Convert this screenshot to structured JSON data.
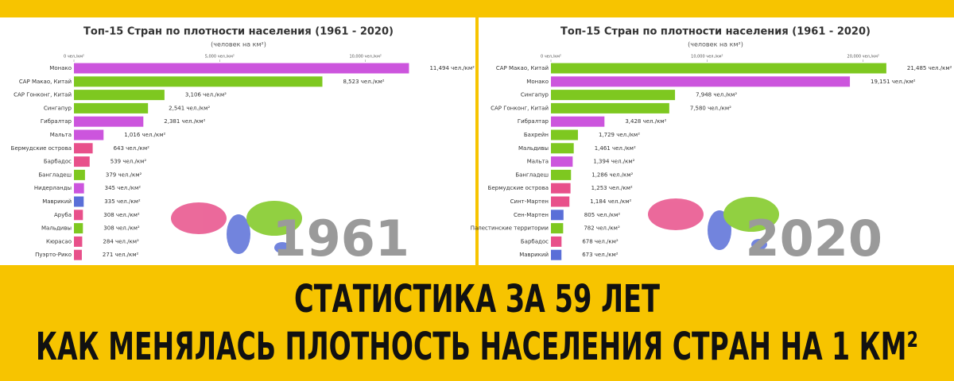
{
  "chart_data": [
    {
      "type": "bar",
      "title": "Топ-15 Стран по плотности населения (1961 - 2020)",
      "subtitle": "(человек на км²)",
      "annotation": "1961",
      "categories": [
        "Монако",
        "САР Макао, Китай",
        "САР Гонконг, Китай",
        "Сингапур",
        "Гибралтар",
        "Мальта",
        "Бермудские острова",
        "Барбадос",
        "Бангладеш",
        "Нидерланды",
        "Маврикий",
        "Аруба",
        "Мальдивы",
        "Кюрасао",
        "Пуэрто-Рико"
      ],
      "values": [
        11494,
        8523,
        3106,
        2541,
        2381,
        1016,
        643,
        539,
        379,
        345,
        335,
        308,
        308,
        284,
        271
      ],
      "value_labels": [
        "11,494 чел./км²",
        "8,523 чел./км²",
        "3,106 чел./км²",
        "2,541 чел./км²",
        "2,381 чел./км²",
        "1,016 чел./км²",
        "643 чел./км²",
        "539 чел./км²",
        "379 чел./км²",
        "345 чел./км²",
        "335 чел./км²",
        "308 чел./км²",
        "308 чел./км²",
        "284 чел./км²",
        "271 чел./км²"
      ],
      "colors": [
        "#cc55dd",
        "#7ec820",
        "#7ec820",
        "#7ec820",
        "#cc55dd",
        "#cc55dd",
        "#e8508a",
        "#e8508a",
        "#7ec820",
        "#cc55dd",
        "#5a6fd8",
        "#e8508a",
        "#7ec820",
        "#e8508a",
        "#e8508a"
      ],
      "xlim": [
        0,
        12000
      ],
      "xticks": [
        {
          "value": 0,
          "label": "0 чел./км²"
        },
        {
          "value": 5000,
          "label": "5,000 чел./км²"
        },
        {
          "value": 10000,
          "label": "10,000 чел./км²"
        }
      ]
    },
    {
      "type": "bar",
      "title": "Топ-15 Стран по плотности населения (1961 - 2020)",
      "subtitle": "(человек на км²)",
      "annotation": "2020",
      "categories": [
        "САР Макао, Китай",
        "Монако",
        "Сингапур",
        "САР Гонконг, Китай",
        "Гибралтар",
        "Бахрейн",
        "Мальдивы",
        "Мальта",
        "Бангладеш",
        "Бермудские острова",
        "Синт-Мартен",
        "Сен-Мартен",
        "Палестинские территории",
        "Барбадос",
        "Маврикий"
      ],
      "values": [
        21485,
        19151,
        7948,
        7580,
        3428,
        1729,
        1461,
        1394,
        1286,
        1253,
        1184,
        805,
        782,
        678,
        673
      ],
      "value_labels": [
        "21,485 чел./км²",
        "19,151 чел./км²",
        "7,948 чел./км²",
        "7,580 чел./км²",
        "3,428 чел./км²",
        "1,729 чел./км²",
        "1,461 чел./км²",
        "1,394 чел./км²",
        "1,286 чел./км²",
        "1,253 чел./км²",
        "1,184 чел./км²",
        "805 чел./км²",
        "782 чел./км²",
        "678 чел./км²",
        "673 чел./км²"
      ],
      "colors": [
        "#7ec820",
        "#cc55dd",
        "#7ec820",
        "#7ec820",
        "#cc55dd",
        "#7ec820",
        "#7ec820",
        "#cc55dd",
        "#7ec820",
        "#e8508a",
        "#e8508a",
        "#5a6fd8",
        "#7ec820",
        "#e8508a",
        "#5a6fd8"
      ],
      "xlim": [
        0,
        22000
      ],
      "xticks": [
        {
          "value": 0,
          "label": "0 чел./км²"
        },
        {
          "value": 10000,
          "label": "10,000 чел./км²"
        },
        {
          "value": 20000,
          "label": "20,000 чел./км²"
        }
      ]
    }
  ],
  "banner": {
    "lines": [
      "СТАТИСТИКА ЗА 59 ЛЕТ",
      "КАК МЕНЯЛАСЬ ПЛОТНОСТЬ НАСЕЛЕНИЯ СТРАН НА 1 КМ²"
    ]
  }
}
